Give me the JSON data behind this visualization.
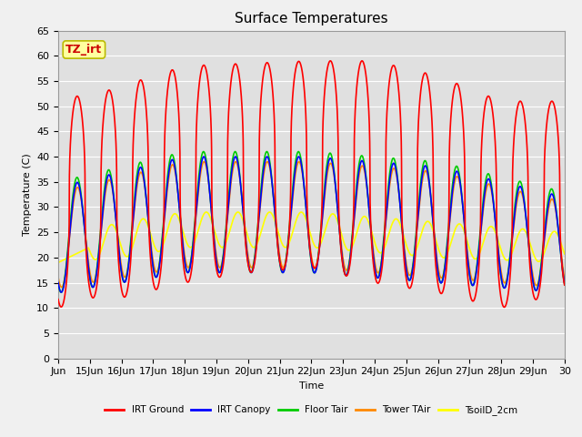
{
  "title": "Surface Temperatures",
  "xlabel": "Time",
  "ylabel": "Temperature (C)",
  "ylim": [
    0,
    65
  ],
  "yticks": [
    0,
    5,
    10,
    15,
    20,
    25,
    30,
    35,
    40,
    45,
    50,
    55,
    60,
    65
  ],
  "xlim_start": 0,
  "xlim_end": 16,
  "xtick_positions": [
    0,
    1,
    2,
    3,
    4,
    5,
    6,
    7,
    8,
    9,
    10,
    11,
    12,
    13,
    14,
    15,
    16
  ],
  "xtick_labels": [
    "Jun",
    "15Jun",
    "16Jun",
    "17Jun",
    "18Jun",
    "19Jun",
    "20Jun",
    "21Jun",
    "22Jun",
    "23Jun",
    "24Jun",
    "25Jun",
    "26Jun",
    "27Jun",
    "28Jun",
    "29Jun",
    "30"
  ],
  "fig_bg": "#f0f0f0",
  "axes_facecolor": "#e0e0e0",
  "legend_entries": [
    "IRT Ground",
    "IRT Canopy",
    "Floor Tair",
    "Tower TAir",
    "TsoilD_2cm"
  ],
  "legend_colors": [
    "#ff0000",
    "#0000ff",
    "#00cc00",
    "#ff8800",
    "#ffff00"
  ],
  "annotation_text": "TZ_irt",
  "annotation_bg": "#ffffa0",
  "annotation_border": "#bbbb00",
  "line_width": 1.2,
  "grid_color": "#ffffff",
  "title_fontsize": 11,
  "label_fontsize": 8,
  "tick_fontsize": 8
}
